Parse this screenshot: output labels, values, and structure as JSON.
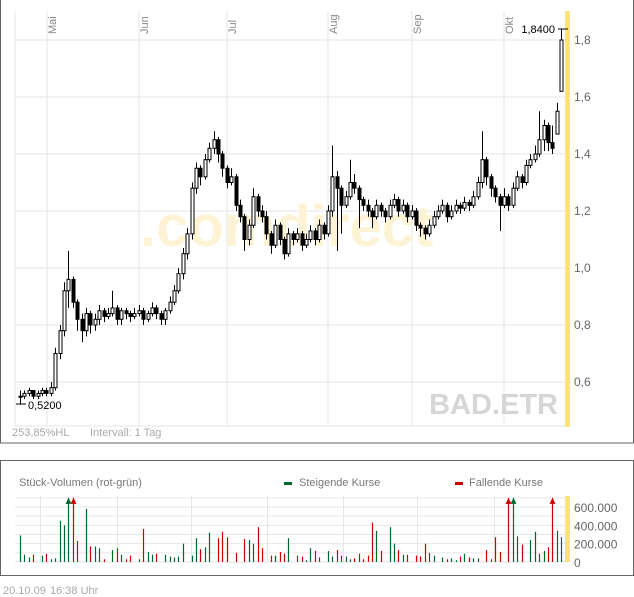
{
  "chart_data": [
    {
      "type": "candlestick",
      "symbol_watermark": "BAD.ETR",
      "logo_watermark": ".comdirect",
      "months": [
        {
          "label": "Mai",
          "index": 7
        },
        {
          "label": "Jun",
          "index": 28
        },
        {
          "label": "Jul",
          "index": 48
        },
        {
          "label": "Aug",
          "index": 71
        },
        {
          "label": "Sep",
          "index": 90
        },
        {
          "label": "Okt",
          "index": 111
        }
      ],
      "ylim": [
        0.47,
        1.92
      ],
      "yticks": [
        {
          "value": 0.6,
          "label": "0,6"
        },
        {
          "value": 0.8,
          "label": "0,8"
        },
        {
          "value": 1.0,
          "label": "1,0"
        },
        {
          "value": 1.2,
          "label": "1,2"
        },
        {
          "value": 1.4,
          "label": "1,4"
        },
        {
          "value": 1.6,
          "label": "1,6"
        },
        {
          "value": 1.8,
          "label": "1,8"
        }
      ],
      "high_label": "1,8400",
      "low_label": "0,5200",
      "range_text": "253,85%HL",
      "interval_text": "Intervall: 1 Tag",
      "ohlc": [
        [
          0.55,
          0.57,
          0.52,
          0.55
        ],
        [
          0.55,
          0.57,
          0.54,
          0.56
        ],
        [
          0.56,
          0.58,
          0.55,
          0.57
        ],
        [
          0.57,
          0.57,
          0.54,
          0.55
        ],
        [
          0.55,
          0.57,
          0.54,
          0.56
        ],
        [
          0.56,
          0.58,
          0.55,
          0.57
        ],
        [
          0.57,
          0.58,
          0.55,
          0.56
        ],
        [
          0.56,
          0.6,
          0.55,
          0.58
        ],
        [
          0.58,
          0.72,
          0.57,
          0.7
        ],
        [
          0.7,
          0.8,
          0.68,
          0.78
        ],
        [
          0.78,
          0.95,
          0.76,
          0.92
        ],
        [
          0.92,
          1.06,
          0.86,
          0.96
        ],
        [
          0.96,
          0.97,
          0.86,
          0.88
        ],
        [
          0.88,
          0.89,
          0.78,
          0.82
        ],
        [
          0.82,
          0.84,
          0.74,
          0.78
        ],
        [
          0.78,
          0.86,
          0.76,
          0.84
        ],
        [
          0.84,
          0.85,
          0.77,
          0.8
        ],
        [
          0.8,
          0.84,
          0.78,
          0.82
        ],
        [
          0.82,
          0.87,
          0.8,
          0.85
        ],
        [
          0.85,
          0.86,
          0.81,
          0.83
        ],
        [
          0.83,
          0.86,
          0.82,
          0.84
        ],
        [
          0.84,
          0.92,
          0.83,
          0.86
        ],
        [
          0.86,
          0.87,
          0.8,
          0.82
        ],
        [
          0.82,
          0.86,
          0.8,
          0.85
        ],
        [
          0.85,
          0.86,
          0.82,
          0.84
        ],
        [
          0.84,
          0.85,
          0.81,
          0.83
        ],
        [
          0.83,
          0.86,
          0.82,
          0.84
        ],
        [
          0.84,
          0.87,
          0.83,
          0.85
        ],
        [
          0.85,
          0.86,
          0.8,
          0.82
        ],
        [
          0.82,
          0.85,
          0.81,
          0.84
        ],
        [
          0.84,
          0.88,
          0.83,
          0.86
        ],
        [
          0.86,
          0.87,
          0.82,
          0.84
        ],
        [
          0.84,
          0.85,
          0.8,
          0.82
        ],
        [
          0.82,
          0.86,
          0.8,
          0.85
        ],
        [
          0.85,
          0.9,
          0.84,
          0.88
        ],
        [
          0.88,
          0.94,
          0.87,
          0.92
        ],
        [
          0.92,
          1.0,
          0.91,
          0.98
        ],
        [
          0.98,
          1.07,
          0.96,
          1.05
        ],
        [
          1.05,
          1.14,
          1.03,
          1.12
        ],
        [
          1.12,
          1.3,
          1.1,
          1.28
        ],
        [
          1.28,
          1.37,
          1.26,
          1.35
        ],
        [
          1.35,
          1.36,
          1.29,
          1.32
        ],
        [
          1.32,
          1.4,
          1.31,
          1.38
        ],
        [
          1.38,
          1.44,
          1.37,
          1.42
        ],
        [
          1.42,
          1.48,
          1.4,
          1.45
        ],
        [
          1.45,
          1.46,
          1.37,
          1.4
        ],
        [
          1.4,
          1.41,
          1.32,
          1.35
        ],
        [
          1.35,
          1.36,
          1.28,
          1.3
        ],
        [
          1.3,
          1.35,
          1.29,
          1.32
        ],
        [
          1.32,
          1.33,
          1.2,
          1.22
        ],
        [
          1.22,
          1.24,
          1.16,
          1.18
        ],
        [
          1.18,
          1.19,
          1.06,
          1.1
        ],
        [
          1.1,
          1.17,
          1.08,
          1.15
        ],
        [
          1.15,
          1.28,
          1.14,
          1.25
        ],
        [
          1.25,
          1.26,
          1.18,
          1.2
        ],
        [
          1.2,
          1.22,
          1.16,
          1.18
        ],
        [
          1.18,
          1.2,
          1.1,
          1.12
        ],
        [
          1.12,
          1.13,
          1.05,
          1.08
        ],
        [
          1.08,
          1.17,
          1.07,
          1.15
        ],
        [
          1.15,
          1.16,
          1.08,
          1.1
        ],
        [
          1.1,
          1.11,
          1.03,
          1.05
        ],
        [
          1.05,
          1.14,
          1.04,
          1.12
        ],
        [
          1.12,
          1.13,
          1.08,
          1.1
        ],
        [
          1.1,
          1.14,
          1.09,
          1.12
        ],
        [
          1.12,
          1.13,
          1.06,
          1.08
        ],
        [
          1.08,
          1.12,
          1.07,
          1.1
        ],
        [
          1.1,
          1.15,
          1.09,
          1.13
        ],
        [
          1.13,
          1.14,
          1.08,
          1.1
        ],
        [
          1.1,
          1.17,
          1.09,
          1.15
        ],
        [
          1.15,
          1.16,
          1.1,
          1.12
        ],
        [
          1.12,
          1.22,
          1.11,
          1.2
        ],
        [
          1.2,
          1.43,
          1.18,
          1.32
        ],
        [
          1.32,
          1.34,
          1.06,
          1.28
        ],
        [
          1.28,
          1.29,
          1.12,
          1.22
        ],
        [
          1.22,
          1.27,
          1.21,
          1.25
        ],
        [
          1.25,
          1.38,
          1.24,
          1.3
        ],
        [
          1.3,
          1.33,
          1.26,
          1.28
        ],
        [
          1.28,
          1.29,
          1.14,
          1.24
        ],
        [
          1.24,
          1.25,
          1.2,
          1.22
        ],
        [
          1.22,
          1.24,
          1.18,
          1.2
        ],
        [
          1.2,
          1.21,
          1.14,
          1.18
        ],
        [
          1.18,
          1.24,
          1.17,
          1.22
        ],
        [
          1.22,
          1.23,
          1.18,
          1.2
        ],
        [
          1.2,
          1.21,
          1.16,
          1.18
        ],
        [
          1.18,
          1.24,
          1.17,
          1.22
        ],
        [
          1.22,
          1.26,
          1.21,
          1.24
        ],
        [
          1.24,
          1.25,
          1.18,
          1.2
        ],
        [
          1.2,
          1.24,
          1.19,
          1.22
        ],
        [
          1.22,
          1.23,
          1.16,
          1.18
        ],
        [
          1.18,
          1.22,
          1.17,
          1.2
        ],
        [
          1.2,
          1.21,
          1.13,
          1.15
        ],
        [
          1.15,
          1.16,
          1.11,
          1.14
        ],
        [
          1.14,
          1.15,
          1.1,
          1.12
        ],
        [
          1.12,
          1.17,
          1.11,
          1.15
        ],
        [
          1.15,
          1.2,
          1.14,
          1.18
        ],
        [
          1.18,
          1.22,
          1.17,
          1.2
        ],
        [
          1.2,
          1.24,
          1.19,
          1.22
        ],
        [
          1.22,
          1.23,
          1.16,
          1.18
        ],
        [
          1.18,
          1.22,
          1.17,
          1.2
        ],
        [
          1.2,
          1.24,
          1.19,
          1.22
        ],
        [
          1.22,
          1.23,
          1.19,
          1.21
        ],
        [
          1.21,
          1.25,
          1.2,
          1.23
        ],
        [
          1.23,
          1.24,
          1.2,
          1.22
        ],
        [
          1.22,
          1.27,
          1.21,
          1.25
        ],
        [
          1.25,
          1.32,
          1.24,
          1.3
        ],
        [
          1.3,
          1.48,
          1.28,
          1.38
        ],
        [
          1.38,
          1.39,
          1.29,
          1.32
        ],
        [
          1.32,
          1.33,
          1.25,
          1.28
        ],
        [
          1.28,
          1.29,
          1.23,
          1.25
        ],
        [
          1.25,
          1.26,
          1.13,
          1.22
        ],
        [
          1.22,
          1.28,
          1.21,
          1.25
        ],
        [
          1.25,
          1.26,
          1.2,
          1.22
        ],
        [
          1.22,
          1.3,
          1.21,
          1.28
        ],
        [
          1.28,
          1.34,
          1.27,
          1.32
        ],
        [
          1.32,
          1.33,
          1.28,
          1.3
        ],
        [
          1.3,
          1.38,
          1.29,
          1.36
        ],
        [
          1.36,
          1.4,
          1.35,
          1.38
        ],
        [
          1.38,
          1.43,
          1.37,
          1.4
        ],
        [
          1.4,
          1.55,
          1.39,
          1.45
        ],
        [
          1.45,
          1.52,
          1.41,
          1.5
        ],
        [
          1.5,
          1.51,
          1.41,
          1.44
        ],
        [
          1.44,
          1.5,
          1.4,
          1.42
        ],
        [
          1.47,
          1.58,
          1.47,
          1.55
        ],
        [
          1.62,
          1.84,
          1.62,
          1.8
        ]
      ]
    },
    {
      "type": "bar",
      "title": "Stück-Volumen (rot-grün)",
      "legend": [
        {
          "name": "Steigende Kurse",
          "color": "#006633"
        },
        {
          "name": "Fallende Kurse",
          "color": "#cc0000"
        }
      ],
      "ylim": [
        0,
        700000
      ],
      "yticks": [
        {
          "value": 0,
          "label": "0"
        },
        {
          "value": 200000,
          "label": "200.000"
        },
        {
          "value": 400000,
          "label": "400.000"
        },
        {
          "value": 600000,
          "label": "600.000"
        }
      ],
      "values": [
        290000,
        80000,
        50000,
        80000,
        0,
        70000,
        90000,
        30000,
        40000,
        450000,
        400000,
        730000,
        730000,
        230000,
        0,
        580000,
        170000,
        170000,
        150000,
        30000,
        0,
        130000,
        150000,
        80000,
        30000,
        70000,
        0,
        30000,
        360000,
        110000,
        80000,
        90000,
        0,
        80000,
        60000,
        50000,
        60000,
        200000,
        0,
        70000,
        260000,
        140000,
        160000,
        320000,
        0,
        260000,
        330000,
        270000,
        0,
        100000,
        0,
        250000,
        240000,
        200000,
        380000,
        150000,
        0,
        70000,
        70000,
        110000,
        90000,
        260000,
        0,
        70000,
        60000,
        20000,
        150000,
        120000,
        50000,
        0,
        120000,
        60000,
        130000,
        70000,
        60000,
        30000,
        40000,
        90000,
        30000,
        70000,
        430000,
        340000,
        120000,
        0,
        380000,
        200000,
        130000,
        80000,
        80000,
        0,
        70000,
        60000,
        200000,
        100000,
        70000,
        0,
        50000,
        30000,
        40000,
        20000,
        60000,
        90000,
        50000,
        40000,
        40000,
        0,
        130000,
        30000,
        270000,
        110000,
        0,
        730000,
        730000,
        280000,
        190000,
        0,
        240000,
        330000,
        90000,
        120000,
        160000,
        730000,
        340000,
        270000
      ]
    }
  ],
  "footer": {
    "date": "20.10.09",
    "time": "16:38 Uhr"
  },
  "colors": {
    "up": "#006633",
    "down": "#cc0000",
    "highlight": "#ffe27a",
    "grid": "#e6e6e6"
  }
}
